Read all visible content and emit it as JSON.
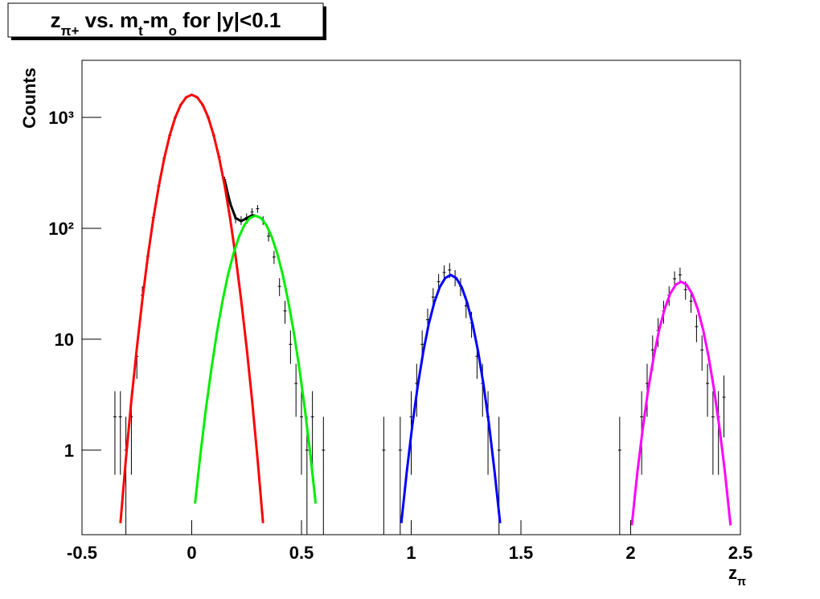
{
  "chart_data": {
    "type": "line",
    "title": [
      {
        "text": "z"
      },
      {
        "text": "π+",
        "baseline": "sub"
      },
      {
        "text": " vs. m"
      },
      {
        "text": "t",
        "baseline": "sub"
      },
      {
        "text": "-m"
      },
      {
        "text": "o",
        "baseline": "sub"
      },
      {
        "text": " for |y|<0.1"
      }
    ],
    "x_label": [
      {
        "text": "z"
      },
      {
        "text": "π",
        "baseline": "sub"
      }
    ],
    "y_label": "Counts",
    "log_y": true,
    "xlim": [
      -0.5,
      2.5
    ],
    "xticks": [
      {
        "value": -0.5,
        "label": "-0.5"
      },
      0,
      0.5,
      1,
      1.5,
      2,
      2.5
    ],
    "ylim": [
      0.173,
      3270
    ],
    "yticks": [
      1,
      10,
      {
        "value": 100,
        "label": "10²"
      },
      {
        "value": 1000,
        "label": "10³"
      }
    ],
    "series": [
      {
        "style": "points",
        "color": "#000000",
        "x": [
          -0.35,
          -0.325,
          -0.3,
          -0.275,
          -0.25,
          -0.225,
          -0.2,
          -0.175,
          -0.15,
          -0.125,
          -0.1,
          -0.075,
          -0.05,
          -0.025,
          0,
          0.025,
          0.05,
          0.075,
          0.1,
          0.125,
          0.15,
          0.175,
          0.2,
          0.225,
          0.25,
          0.275,
          0.3,
          0.325,
          0.35,
          0.375,
          0.4,
          0.425,
          0.45,
          0.475,
          0.5,
          0.525,
          0.55,
          0.6,
          0.875,
          0.95,
          1.0,
          1.025,
          1.05,
          1.075,
          1.1,
          1.125,
          1.15,
          1.175,
          1.2,
          1.225,
          1.25,
          1.275,
          1.3,
          1.325,
          1.35,
          1.4,
          1.95,
          2.05,
          2.075,
          2.1,
          2.125,
          2.15,
          2.175,
          2.2,
          2.225,
          2.25,
          2.275,
          2.3,
          2.325,
          2.35,
          2.375,
          2.4,
          2.425
        ],
        "values": [
          2,
          2,
          1,
          2,
          7,
          25,
          56,
          125,
          240,
          430,
          690,
          1000,
          1300,
          1520,
          1600,
          1510,
          1290,
          1000,
          690,
          440,
          275,
          170,
          122,
          118,
          125,
          140,
          150,
          118,
          85,
          55,
          30,
          18,
          9,
          4,
          2,
          1,
          2,
          1,
          1,
          1,
          2,
          4,
          9,
          15,
          24,
          33,
          40,
          42,
          36,
          30,
          20,
          14,
          7,
          4,
          2,
          1,
          1,
          2,
          4,
          8,
          12,
          18,
          25,
          35,
          38,
          28,
          22,
          13,
          8,
          4,
          2,
          2,
          3
        ],
        "errors": [
          1.4,
          1.4,
          1,
          1.4,
          2.6,
          5,
          7.5,
          11.2,
          15.5,
          20.7,
          26.3,
          31.6,
          36,
          39,
          40,
          38.9,
          35.9,
          31.6,
          26.3,
          21,
          16.6,
          13,
          11,
          10.9,
          11.2,
          11.8,
          12.2,
          10.9,
          9.2,
          7.4,
          5.5,
          4.2,
          3,
          2,
          1.4,
          1,
          1.4,
          1,
          1,
          1,
          1.4,
          2,
          3,
          3.9,
          4.9,
          5.7,
          6.3,
          6.5,
          6,
          5.5,
          4.5,
          3.7,
          2.6,
          2,
          1.4,
          1,
          1,
          1.4,
          2,
          2.8,
          3.5,
          4.2,
          5,
          5.9,
          6.2,
          5.3,
          4.7,
          3.6,
          2.8,
          2,
          1.4,
          1.4,
          1.7
        ]
      },
      {
        "style": "line",
        "color": "#000000",
        "x": [
          0.15,
          0.175,
          0.2,
          0.225,
          0.25,
          0.275,
          0.29
        ],
        "values": [
          270,
          168,
          124,
          116,
          123,
          131,
          130
        ]
      },
      {
        "style": "line",
        "color": "#ff0000",
        "x": [
          -0.325,
          -0.3,
          -0.275,
          -0.25,
          -0.225,
          -0.2,
          -0.175,
          -0.15,
          -0.125,
          -0.1,
          -0.075,
          -0.05,
          -0.025,
          0,
          0.025,
          0.05,
          0.075,
          0.1,
          0.125,
          0.15,
          0.175,
          0.2,
          0.225,
          0.25,
          0.275,
          0.3,
          0.325
        ],
        "values": [
          0.22,
          0.83,
          2.8,
          8.4,
          22.8,
          55.6,
          122,
          242,
          431,
          690,
          999,
          1297,
          1518,
          1600,
          1518,
          1297,
          999,
          690,
          431,
          242,
          122,
          55.6,
          22.8,
          8.4,
          2.8,
          0.83,
          0.22
        ]
      },
      {
        "style": "line",
        "color": "#00ee00",
        "x": [
          0.015,
          0.04,
          0.065,
          0.09,
          0.115,
          0.14,
          0.165,
          0.19,
          0.215,
          0.24,
          0.265,
          0.29,
          0.315,
          0.34,
          0.365,
          0.39,
          0.415,
          0.44,
          0.465,
          0.49,
          0.515,
          0.54,
          0.565
        ],
        "values": [
          0.33,
          0.93,
          2.38,
          5.5,
          11.6,
          21.9,
          37.8,
          59,
          83.6,
          107,
          124,
          130,
          124,
          107,
          83.6,
          59,
          37.8,
          21.9,
          11.6,
          5.5,
          2.38,
          0.93,
          0.33
        ]
      },
      {
        "style": "line",
        "color": "#0000ff",
        "x": [
          0.955,
          0.98,
          1.005,
          1.03,
          1.055,
          1.08,
          1.105,
          1.13,
          1.155,
          1.18,
          1.205,
          1.23,
          1.255,
          1.28,
          1.305,
          1.33,
          1.355,
          1.38,
          1.405
        ],
        "values": [
          0.22,
          0.64,
          1.68,
          3.83,
          7.7,
          13.7,
          21.4,
          29.5,
          35.6,
          38,
          35.6,
          29.5,
          21.4,
          13.7,
          7.7,
          3.83,
          1.68,
          0.64,
          0.22
        ]
      },
      {
        "style": "line",
        "color": "#ff00ff",
        "x": [
          2.005,
          2.03,
          2.055,
          2.08,
          2.105,
          2.13,
          2.155,
          2.18,
          2.205,
          2.23,
          2.255,
          2.28,
          2.305,
          2.33,
          2.355,
          2.38,
          2.405,
          2.43,
          2.455
        ],
        "values": [
          0.21,
          0.62,
          1.56,
          3.52,
          6.96,
          12.2,
          18.8,
          25.7,
          31,
          33,
          31,
          25.7,
          18.8,
          12.2,
          6.96,
          3.52,
          1.56,
          0.62,
          0.21
        ]
      }
    ]
  }
}
